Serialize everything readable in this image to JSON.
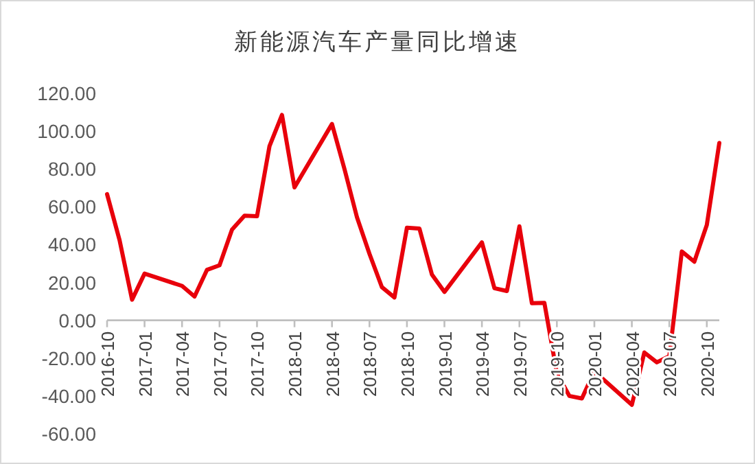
{
  "chart_data": {
    "type": "line",
    "title": "新能源汽车产量同比增速",
    "x": [
      "2016-10",
      "2016-11",
      "2016-12",
      "2017-01",
      "2017-04",
      "2017-05",
      "2017-06",
      "2017-07",
      "2017-08",
      "2017-09",
      "2017-10",
      "2017-11",
      "2017-12",
      "2018-01",
      "2018-04",
      "2018-05",
      "2018-06",
      "2018-07",
      "2018-08",
      "2018-09",
      "2018-10",
      "2018-11",
      "2018-12",
      "2019-01",
      "2019-04",
      "2019-05",
      "2019-06",
      "2019-07",
      "2019-08",
      "2019-09",
      "2019-10",
      "2019-11",
      "2019-12",
      "2020-01",
      "2020-04",
      "2020-05",
      "2020-06",
      "2020-07",
      "2020-08",
      "2020-09",
      "2020-10",
      "2020-11"
    ],
    "series": [
      {
        "color": "#e8000b",
        "values": [
          66.7,
          42.4,
          10.9,
          24.7,
          18.2,
          12.6,
          26.7,
          29.1,
          48,
          55.3,
          55,
          92.1,
          108.6,
          70.3,
          103.8,
          80,
          54.5,
          35.2,
          17.5,
          12.1,
          49,
          48.5,
          24.2,
          15,
          41.2,
          17,
          15.5,
          49.7,
          9,
          9.2,
          -28,
          -40,
          -41.3,
          -27,
          -44.7,
          -17,
          -22.2,
          -19,
          36.4,
          31,
          50.4,
          93.8
        ]
      }
    ],
    "xlim": [
      "2016-10",
      "2020-11"
    ],
    "xticks": [
      "2016-10",
      "2017-01",
      "2017-04",
      "2017-07",
      "2017-10",
      "2018-01",
      "2018-04",
      "2018-07",
      "2018-10",
      "2019-01",
      "2019-04",
      "2019-07",
      "2019-10",
      "2020-01",
      "2020-04",
      "2020-07",
      "2020-10"
    ],
    "ylim": [
      -60,
      120
    ],
    "yticks": [
      {
        "value": -60,
        "label": "-60.00"
      },
      {
        "value": -40,
        "label": "-40.00"
      },
      {
        "value": -20,
        "label": "-20.00"
      },
      {
        "value": 0,
        "label": "0.00"
      },
      {
        "value": 20,
        "label": "20.00"
      },
      {
        "value": 40,
        "label": "40.00"
      },
      {
        "value": 60,
        "label": "60.00"
      },
      {
        "value": 80,
        "label": "80.00"
      },
      {
        "value": 100,
        "label": "100.00"
      },
      {
        "value": 120,
        "label": "120.00"
      }
    ],
    "grid": false,
    "marker": "none",
    "line_style": "solid"
  }
}
